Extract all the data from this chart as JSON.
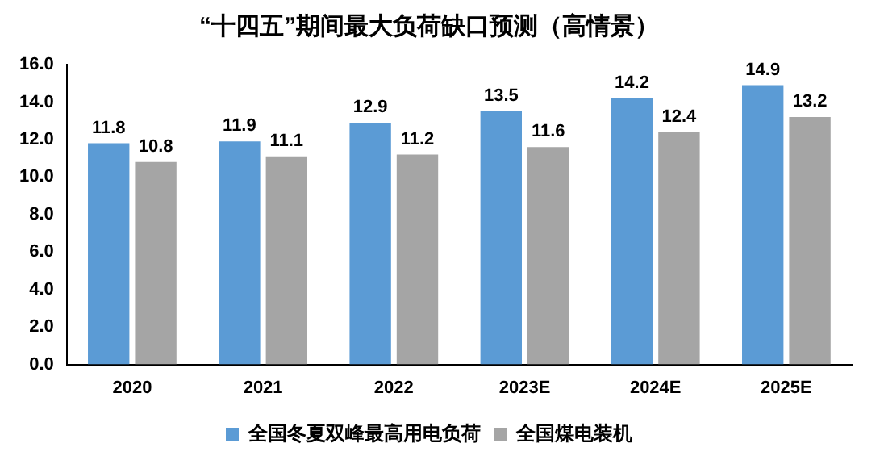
{
  "chart_data": {
    "type": "bar",
    "title": "“十四五”期间最大负荷缺口预测（高情景）",
    "categories": [
      "2020",
      "2021",
      "2022",
      "2023E",
      "2024E",
      "2025E"
    ],
    "series": [
      {
        "name": "全国冬夏双峰最高用电负荷",
        "color": "#5b9bd5",
        "values": [
          11.8,
          11.9,
          12.9,
          13.5,
          14.2,
          14.9
        ]
      },
      {
        "name": "全国煤电装机",
        "color": "#a5a5a5",
        "values": [
          10.8,
          11.1,
          11.2,
          11.6,
          12.4,
          13.2
        ]
      }
    ],
    "ylim": [
      0,
      16
    ],
    "yticks": [
      {
        "value": 0,
        "label": "0.0"
      },
      {
        "value": 2,
        "label": "2.0"
      },
      {
        "value": 4,
        "label": "4.0"
      },
      {
        "value": 6,
        "label": "6.0"
      },
      {
        "value": 8,
        "label": "8.0"
      },
      {
        "value": 10,
        "label": "10.0"
      },
      {
        "value": 12,
        "label": "12.0"
      },
      {
        "value": 14,
        "label": "14.0"
      },
      {
        "value": 16,
        "label": "16.0"
      }
    ],
    "grid": false,
    "legend": "bottom",
    "data_labels": true
  }
}
